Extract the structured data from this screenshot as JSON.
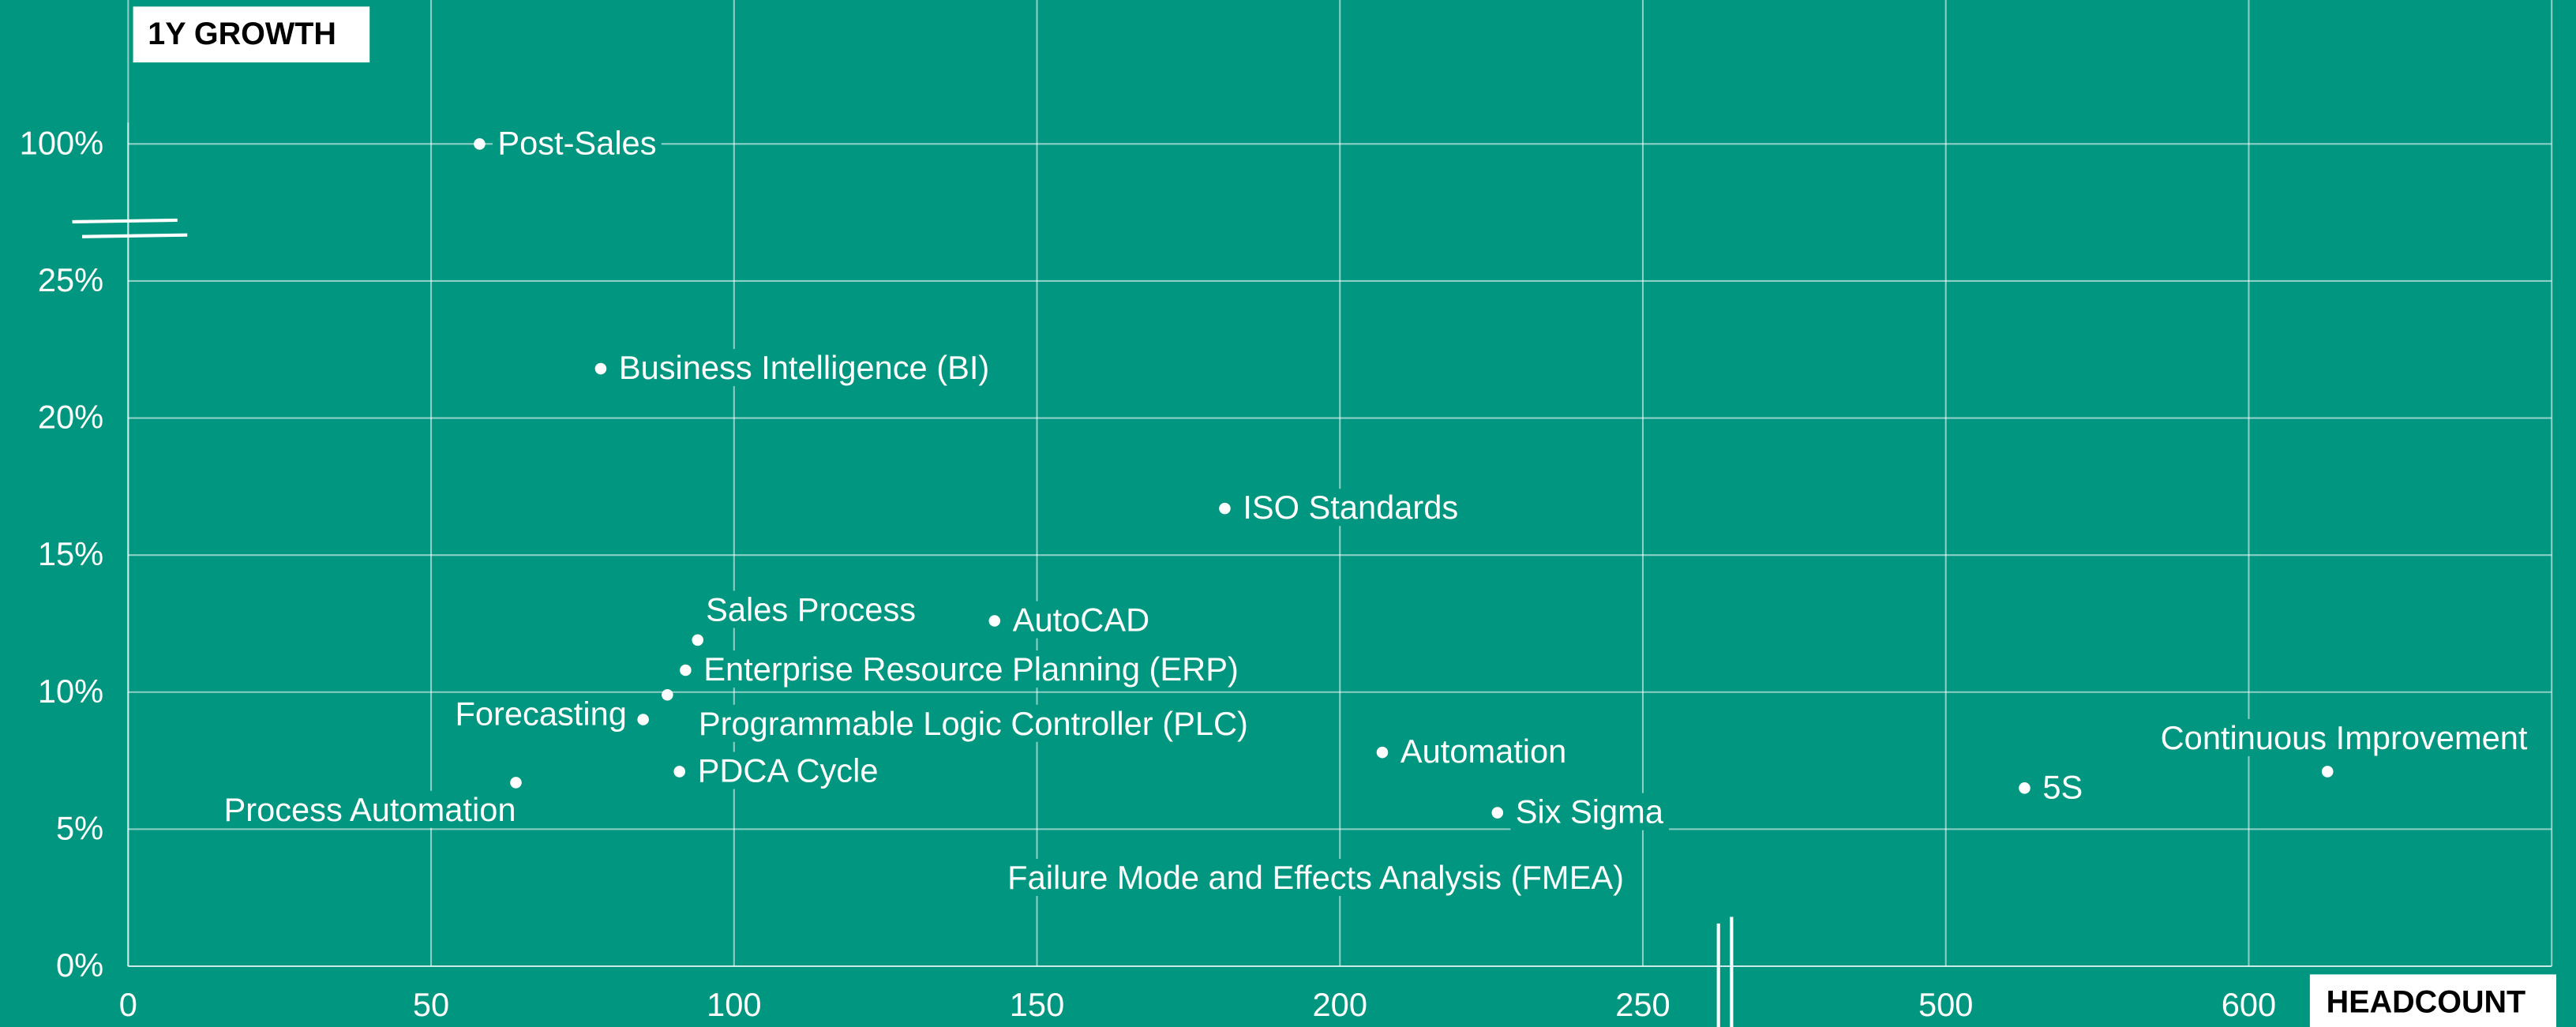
{
  "chart_data": {
    "type": "scatter",
    "x_label": "HEADCOUNT",
    "y_label": "1Y GROWTH",
    "xlim": [
      0,
      700
    ],
    "xticks": [
      0,
      50,
      100,
      150,
      200,
      250,
      500,
      600
    ],
    "ylim": [
      0,
      100
    ],
    "yticks": [
      {
        "value": 0,
        "label": "0%"
      },
      {
        "value": 5,
        "label": "5%"
      },
      {
        "value": 10,
        "label": "10%"
      },
      {
        "value": 15,
        "label": "15%"
      },
      {
        "value": 20,
        "label": "20%"
      },
      {
        "value": 25,
        "label": "25%"
      },
      {
        "value": 100,
        "label": "100%"
      }
    ],
    "grid": true,
    "color": "#ffffff",
    "names": [
      "Post-Sales",
      "Business Intelligence (BI)",
      "ISO Standards",
      "Sales Process",
      "AutoCAD",
      "Enterprise Resource Planning (ERP)",
      "Programmable Logic Controller (PLC)",
      "Forecasting",
      "PDCA Cycle",
      "Process Automation",
      "Automation",
      "Six Sigma",
      "Failure Mode and Effects Analysis (FMEA)",
      "5S",
      "Continuous Improvement"
    ],
    "x": [
      58,
      78,
      181,
      94,
      143,
      92,
      89,
      85,
      91,
      64,
      207,
      226,
      196,
      526,
      626
    ],
    "values": [
      100,
      21.8,
      16.7,
      11.9,
      12.6,
      10.8,
      9.9,
      9.0,
      7.1,
      6.7,
      7.8,
      5.6,
      3.2,
      6.5,
      7.1
    ]
  }
}
